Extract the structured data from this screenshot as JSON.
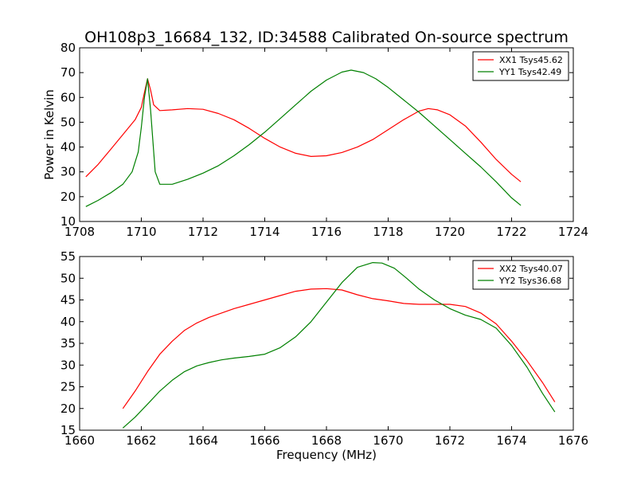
{
  "title": "OH108p3_16684_132, ID:34588 Calibrated On-source spectrum",
  "chart_data": [
    {
      "type": "line",
      "xlim": [
        1708,
        1724
      ],
      "ylim": [
        10,
        80
      ],
      "xticks": [
        1708,
        1710,
        1712,
        1714,
        1716,
        1718,
        1720,
        1722,
        1724
      ],
      "yticks": [
        10,
        20,
        30,
        40,
        50,
        60,
        70,
        80
      ],
      "xlabel": "",
      "ylabel": "Power in Kelvin",
      "legend": "top-right",
      "series": [
        {
          "name": "XX1 Tsys45.62",
          "color": "#ff0000",
          "x": [
            1708.2,
            1708.6,
            1709.0,
            1709.4,
            1709.8,
            1710.0,
            1710.1,
            1710.2,
            1710.3,
            1710.4,
            1710.6,
            1711.0,
            1711.5,
            1712.0,
            1712.5,
            1713.0,
            1713.5,
            1714.0,
            1714.5,
            1715.0,
            1715.5,
            1716.0,
            1716.5,
            1717.0,
            1717.5,
            1718.0,
            1718.5,
            1719.0,
            1719.3,
            1719.6,
            1720.0,
            1720.5,
            1721.0,
            1721.5,
            1722.0,
            1722.3
          ],
          "y": [
            28,
            33,
            39,
            45,
            51,
            56,
            62,
            67.5,
            63,
            57,
            54.7,
            55,
            55.5,
            55.2,
            53.5,
            51,
            47.5,
            43.5,
            40,
            37.5,
            36.2,
            36.5,
            37.8,
            40,
            43,
            47,
            51,
            54.5,
            55.5,
            55,
            53,
            48.5,
            42,
            35,
            29,
            26
          ]
        },
        {
          "name": "YY1 Tsys42.49",
          "color": "#008000",
          "x": [
            1708.2,
            1708.6,
            1709.0,
            1709.4,
            1709.7,
            1709.9,
            1710.0,
            1710.1,
            1710.2,
            1710.3,
            1710.45,
            1710.6,
            1711.0,
            1711.5,
            1712.0,
            1712.5,
            1713.0,
            1713.5,
            1714.0,
            1714.5,
            1715.0,
            1715.5,
            1716.0,
            1716.5,
            1716.8,
            1717.2,
            1717.6,
            1718.0,
            1718.5,
            1719.0,
            1719.5,
            1720.0,
            1720.5,
            1721.0,
            1721.5,
            1722.0,
            1722.3
          ],
          "y": [
            16,
            18.5,
            21.5,
            25,
            30,
            38,
            48,
            60,
            67.5,
            55,
            30,
            25,
            25,
            27,
            29.5,
            32.5,
            36.5,
            41,
            46,
            51.5,
            57,
            62.5,
            67,
            70.2,
            71,
            70,
            67.5,
            64,
            59,
            54,
            48.5,
            43,
            37.5,
            32,
            26,
            19.5,
            16.5
          ]
        }
      ]
    },
    {
      "type": "line",
      "xlim": [
        1660,
        1676
      ],
      "ylim": [
        15,
        55
      ],
      "xticks": [
        1660,
        1662,
        1664,
        1666,
        1668,
        1670,
        1672,
        1674,
        1676
      ],
      "yticks": [
        15,
        20,
        25,
        30,
        35,
        40,
        45,
        50,
        55
      ],
      "xlabel": "Frequency (MHz)",
      "ylabel": "",
      "legend": "top-right",
      "series": [
        {
          "name": "XX2 Tsys40.07",
          "color": "#ff0000",
          "x": [
            1661.4,
            1661.8,
            1662.2,
            1662.6,
            1663.0,
            1663.4,
            1663.8,
            1664.2,
            1664.6,
            1665.0,
            1665.5,
            1666.0,
            1666.5,
            1667.0,
            1667.5,
            1668.0,
            1668.5,
            1669.0,
            1669.5,
            1670.0,
            1670.5,
            1671.0,
            1671.5,
            1672.0,
            1672.5,
            1673.0,
            1673.5,
            1674.0,
            1674.5,
            1675.0,
            1675.4
          ],
          "y": [
            20,
            24,
            28.5,
            32.5,
            35.5,
            38,
            39.7,
            41,
            42,
            43,
            44,
            45,
            46,
            47,
            47.5,
            47.6,
            47.3,
            46.2,
            45.3,
            44.8,
            44.2,
            44,
            44,
            44,
            43.5,
            42,
            39.5,
            35.5,
            31,
            26,
            21.5
          ]
        },
        {
          "name": "YY2 Tsys36.68",
          "color": "#008000",
          "x": [
            1661.4,
            1661.8,
            1662.2,
            1662.6,
            1663.0,
            1663.4,
            1663.8,
            1664.2,
            1664.6,
            1665.0,
            1665.5,
            1666.0,
            1666.5,
            1667.0,
            1667.5,
            1668.0,
            1668.5,
            1669.0,
            1669.5,
            1669.8,
            1670.2,
            1670.6,
            1671.0,
            1671.5,
            1672.0,
            1672.5,
            1673.0,
            1673.5,
            1674.0,
            1674.5,
            1675.0,
            1675.4
          ],
          "y": [
            15.5,
            18,
            21,
            24,
            26.5,
            28.5,
            29.8,
            30.6,
            31.2,
            31.6,
            32,
            32.5,
            34,
            36.5,
            40,
            44.5,
            49,
            52.5,
            53.6,
            53.5,
            52.3,
            50,
            47.5,
            45,
            43,
            41.5,
            40.5,
            38.5,
            34.5,
            29.5,
            23.5,
            19.2
          ]
        }
      ]
    }
  ]
}
